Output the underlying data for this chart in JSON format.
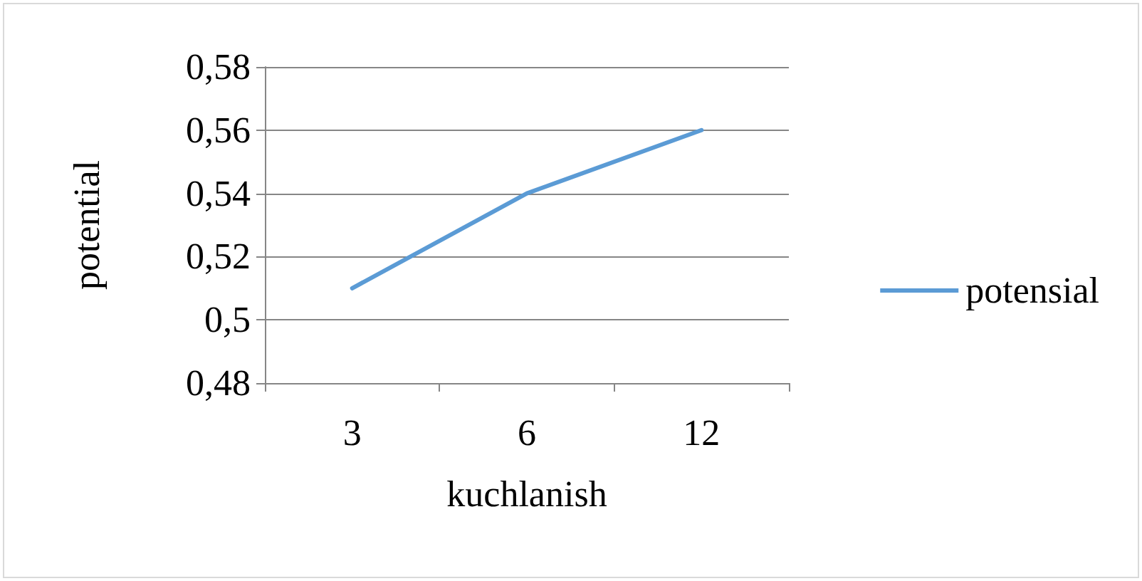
{
  "chart_data": {
    "type": "line",
    "xlabel": "kuchlanish",
    "ylabel": "potential",
    "categories": [
      "3",
      "6",
      "12"
    ],
    "series": [
      {
        "name": "potensial",
        "color": "#5b9bd5",
        "values": [
          0.51,
          0.54,
          0.56
        ]
      }
    ],
    "ylim": [
      0.48,
      0.58
    ],
    "yticks": [
      {
        "value": 0.48,
        "label": "0,48"
      },
      {
        "value": 0.5,
        "label": "0,5"
      },
      {
        "value": 0.52,
        "label": "0,52"
      },
      {
        "value": 0.54,
        "label": "0,54"
      },
      {
        "value": 0.56,
        "label": "0,56"
      },
      {
        "value": 0.58,
        "label": "0,58"
      }
    ],
    "grid": "y",
    "legend": "right",
    "marker": "none",
    "line_style": "solid"
  }
}
